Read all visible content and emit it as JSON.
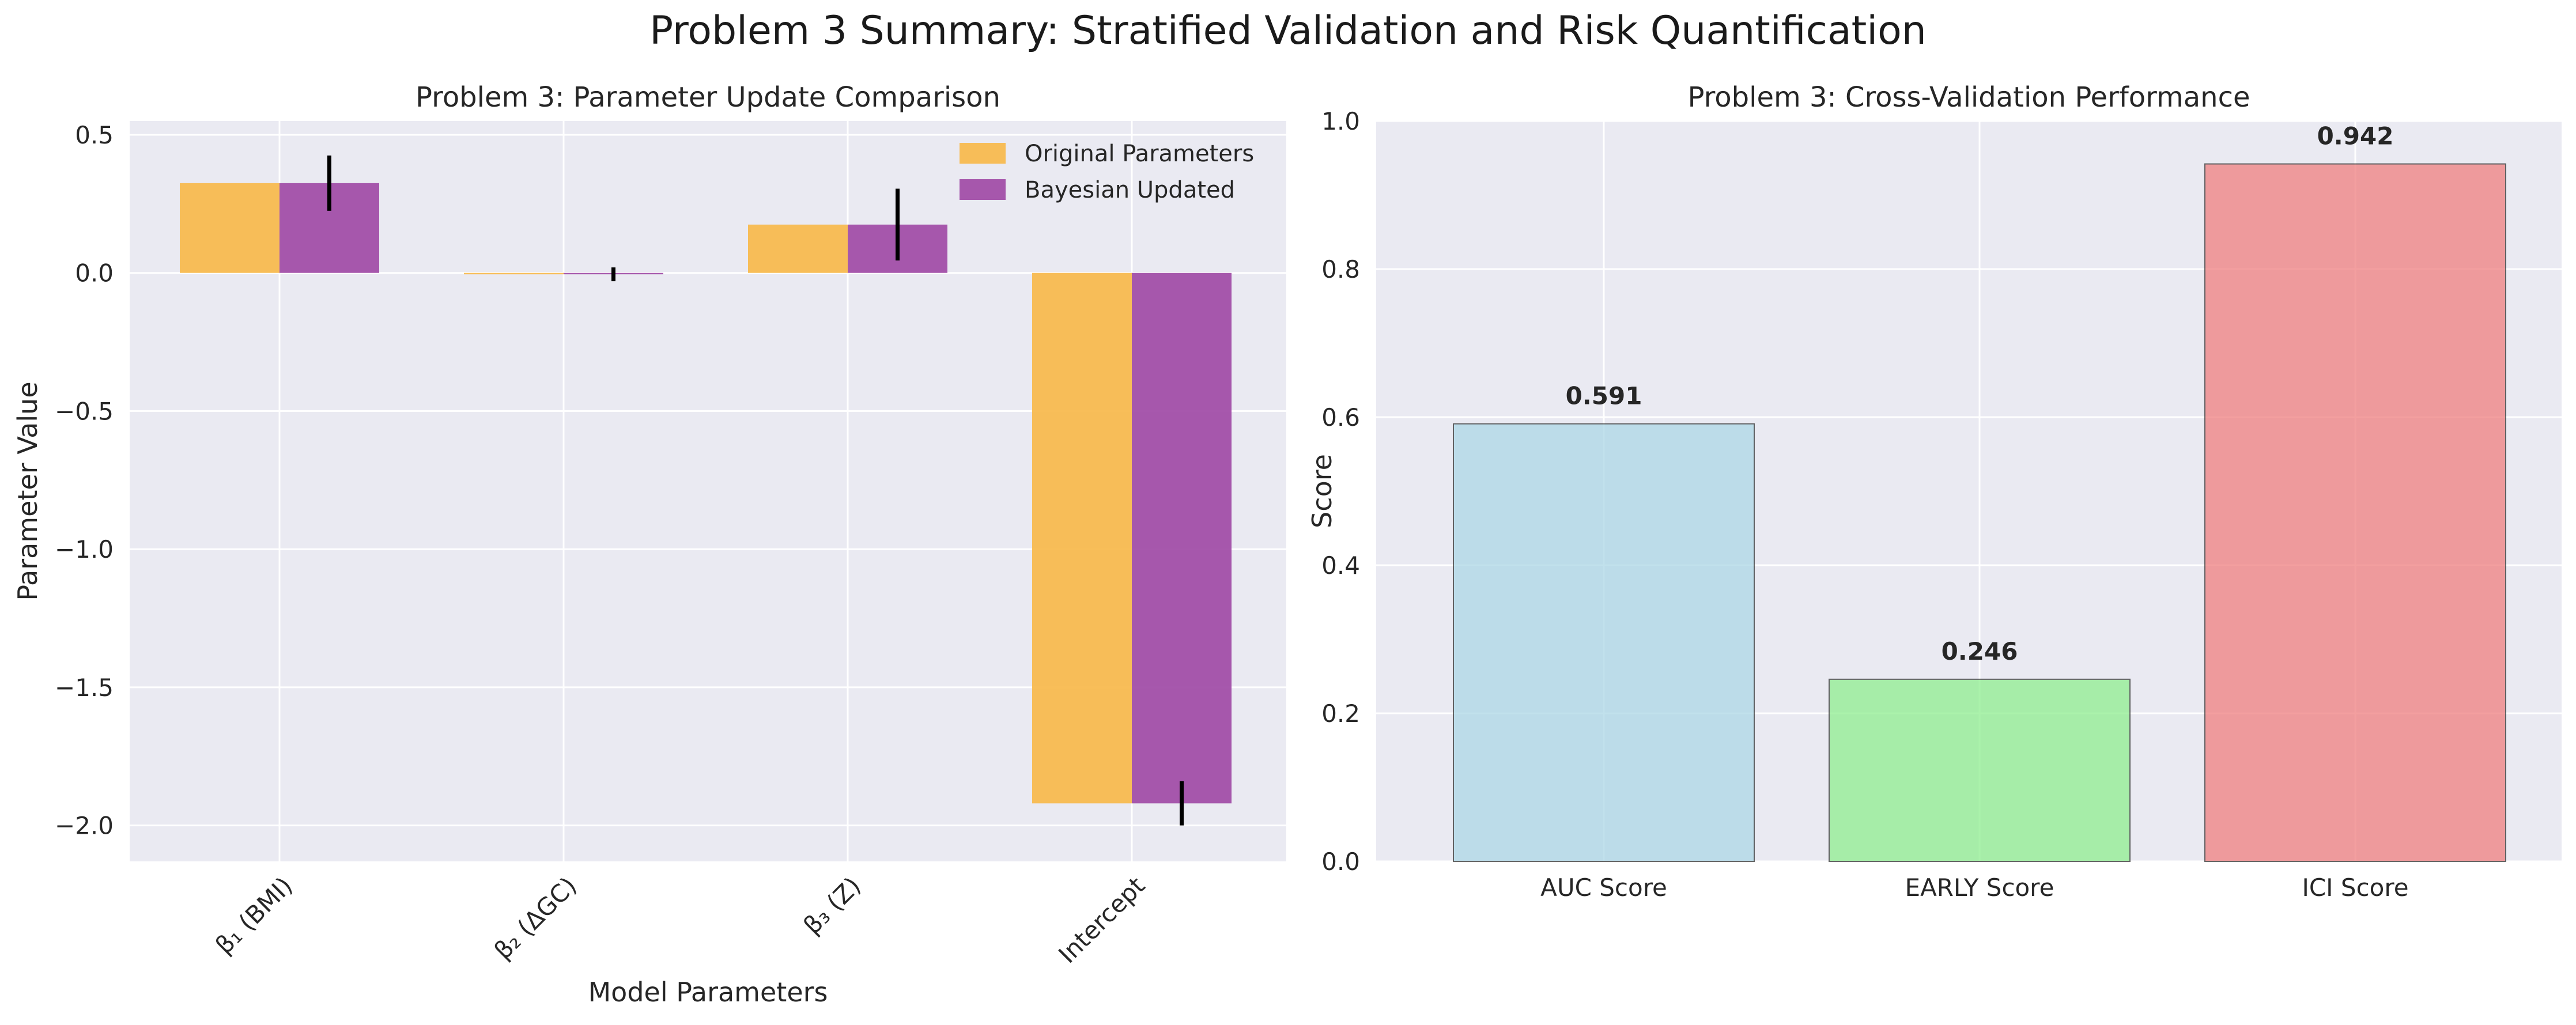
{
  "figure": {
    "title": "Problem 3 Summary: Stratified Validation and Risk Quantification"
  },
  "chart_data": [
    {
      "type": "bar",
      "title": "Problem 3: Parameter Update Comparison",
      "xlabel": "Model Parameters",
      "ylabel": "Parameter Value",
      "categories": [
        "β₁ (BMI)",
        "β₂ (ΔGC)",
        "β₃ (Z)",
        "Intercept"
      ],
      "series": [
        {
          "name": "Original Parameters",
          "values": [
            0.325,
            -0.005,
            0.175,
            -1.92
          ],
          "color": "#f7b84b"
        },
        {
          "name": "Bayesian Updated",
          "values": [
            0.325,
            -0.005,
            0.175,
            -1.92
          ],
          "errors": [
            0.1,
            0.025,
            0.13,
            0.08
          ],
          "color": "#a04aa6"
        }
      ],
      "ylim": [
        -2.13,
        0.55
      ],
      "yticks": [
        0.5,
        0.0,
        -0.5,
        -1.0,
        -1.5,
        -2.0
      ],
      "ytick_labels": [
        "0.5",
        "0.0",
        "−0.5",
        "−1.0",
        "−1.5",
        "−2.0"
      ],
      "grid": true,
      "legend": "top-right"
    },
    {
      "type": "bar",
      "title": "Problem 3: Cross-Validation Performance",
      "xlabel": "",
      "ylabel": "Score",
      "categories": [
        "AUC Score",
        "EARLY Score",
        "ICI Score"
      ],
      "values": [
        0.591,
        0.246,
        0.942
      ],
      "data_labels": [
        "0.591",
        "0.246",
        "0.942"
      ],
      "colors": [
        "#add8e6",
        "#90ee90",
        "#f08080"
      ],
      "ylim": [
        0,
        1.0
      ],
      "yticks": [
        0.0,
        0.2,
        0.4,
        0.6,
        0.8,
        1.0
      ],
      "ytick_labels": [
        "0.0",
        "0.2",
        "0.4",
        "0.6",
        "0.8",
        "1.0"
      ],
      "grid": true
    }
  ]
}
